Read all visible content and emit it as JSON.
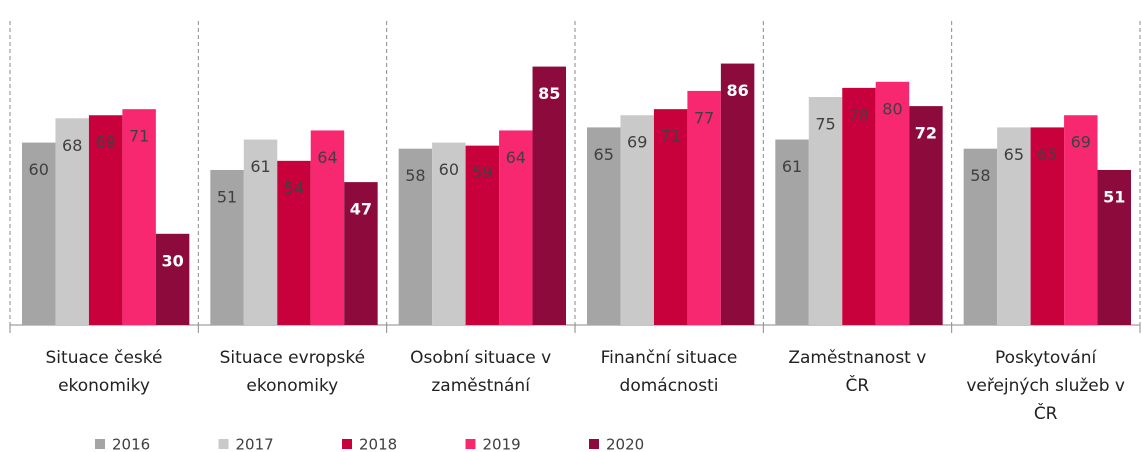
{
  "chart_data": {
    "type": "bar",
    "categories": [
      "Situace české\nekonomiky",
      "Situace evropské\nekonomiky",
      "Osobní situace v\nzaměstnání",
      "Finanční situace\ndomácnosti",
      "Zaměstnanost v\nČR",
      "Poskytování\nveřejných služeb v\nČR"
    ],
    "series": [
      {
        "name": "2016",
        "color": "#a5a5a5",
        "values": [
          60,
          51,
          58,
          65,
          61,
          58
        ]
      },
      {
        "name": "2017",
        "color": "#c9c9c9",
        "values": [
          68,
          61,
          60,
          69,
          75,
          65
        ]
      },
      {
        "name": "2018",
        "color": "#c8003c",
        "values": [
          69,
          54,
          59,
          71,
          78,
          65
        ]
      },
      {
        "name": "2019",
        "color": "#f7286f",
        "values": [
          71,
          64,
          64,
          77,
          80,
          69
        ]
      },
      {
        "name": "2020",
        "color": "#8c0a3c",
        "values": [
          30,
          47,
          85,
          86,
          72,
          51
        ]
      }
    ],
    "ylim": [
      0,
      100
    ],
    "legend": "bottom"
  }
}
